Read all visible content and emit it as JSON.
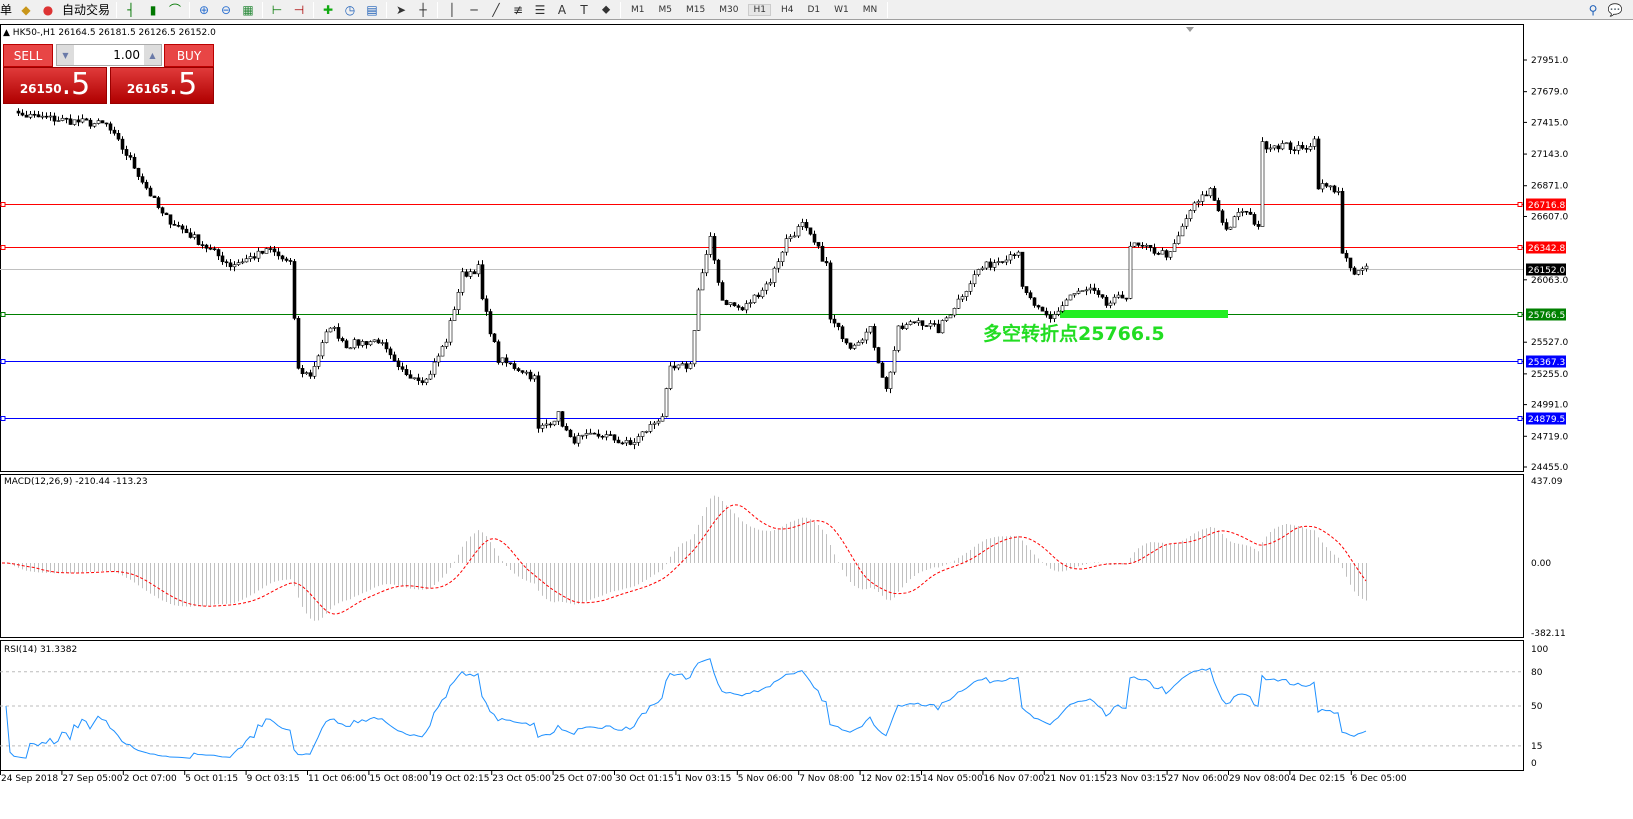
{
  "toolbar": {
    "order_label": "单",
    "autotrade_label": "自动交易",
    "icons": [
      "new-order-icon",
      "autotrade-icon",
      "bar-chart-icon",
      "candlestick-icon",
      "line-chart-icon",
      "zoom-in-icon",
      "zoom-out-icon",
      "tile-windows-icon",
      "chart-shift-icon",
      "autoscroll-icon",
      "indicators-icon",
      "periods-icon",
      "templates-icon",
      "cursor-icon",
      "crosshair-icon",
      "vertical-line-icon",
      "horizontal-line-icon",
      "trendline-icon",
      "fibo-icon",
      "channel-icon",
      "text-icon",
      "label-icon",
      "arrows-icon"
    ],
    "timeframes": [
      "M1",
      "M5",
      "M15",
      "M30",
      "H1",
      "H4",
      "D1",
      "W1",
      "MN"
    ],
    "active_timeframe": "H1"
  },
  "chart": {
    "header": "HK50-,H1  26164.5 26181.5 26126.5 26152.0",
    "trade_panel": {
      "sell_label": "SELL",
      "buy_label": "BUY",
      "lot": "1.00",
      "sell_price_main": "26150",
      "sell_price_frac": ".5",
      "buy_price_main": "26165",
      "buy_price_frac": ".5"
    },
    "price_axis": [
      "27951.0",
      "27679.0",
      "27415.0",
      "27143.0",
      "26871.0",
      "26607.0",
      "26063.0",
      "25527.0",
      "25255.0",
      "24991.0",
      "24719.0",
      "24455.0"
    ],
    "levels": [
      {
        "price": "26716.8",
        "color": "#ff0000"
      },
      {
        "price": "26342.8",
        "color": "#ff0000"
      },
      {
        "price": "25766.5",
        "color": "#008000"
      },
      {
        "price": "25367.3",
        "color": "#0000ff"
      },
      {
        "price": "24879.5",
        "color": "#0000ff"
      }
    ],
    "current_price": "26152.0",
    "pivot_label": "多空转折点25766.5",
    "pivot_color": "#22ee22",
    "time_axis": [
      "24 Sep 2018",
      "27 Sep 05:00",
      "2 Oct 07:00",
      "5 Oct 01:15",
      "9 Oct 03:15",
      "11 Oct 06:00",
      "15 Oct 08:00",
      "19 Oct 02:15",
      "23 Oct 05:00",
      "25 Oct 07:00",
      "30 Oct 01:15",
      "1 Nov 03:15",
      "5 Nov 06:00",
      "7 Nov 08:00",
      "12 Nov 02:15",
      "14 Nov 05:00",
      "16 Nov 07:00",
      "21 Nov 01:15",
      "23 Nov 03:15",
      "27 Nov 06:00",
      "29 Nov 08:00",
      "4 Dec 02:15",
      "6 Dec 05:00"
    ]
  },
  "macd": {
    "label": "MACD(12,26,9) -210.44 -113.23",
    "axis": [
      "437.09",
      "0.00",
      "-382.11"
    ],
    "signal_color": "#ff0000",
    "hist_color": "#c0c0c0"
  },
  "rsi": {
    "label": "RSI(14) 31.3382",
    "axis": [
      "100",
      "80",
      "50",
      "15",
      "0"
    ],
    "line_color": "#1e90ff"
  },
  "chart_data": {
    "type": "candlestick",
    "symbol": "HK50-",
    "timeframe": "H1",
    "approx_close_path": [
      [
        0,
        27693
      ],
      [
        4,
        27479
      ],
      [
        26,
        27393
      ],
      [
        32,
        27092
      ],
      [
        40,
        26620
      ],
      [
        47,
        26448
      ],
      [
        57,
        26190
      ],
      [
        67,
        26319
      ],
      [
        72,
        26190
      ],
      [
        74,
        25288
      ],
      [
        77,
        25245
      ],
      [
        82,
        25675
      ],
      [
        86,
        25503
      ],
      [
        94,
        25546
      ],
      [
        99,
        25288
      ],
      [
        106,
        25202
      ],
      [
        111,
        25546
      ],
      [
        115,
        26104
      ],
      [
        119,
        26164
      ],
      [
        120,
        25890
      ],
      [
        124,
        25374
      ],
      [
        130,
        25288
      ],
      [
        133,
        25220
      ],
      [
        134,
        24773
      ],
      [
        139,
        24902
      ],
      [
        142,
        24687
      ],
      [
        150,
        24730
      ],
      [
        157,
        24644
      ],
      [
        165,
        24902
      ],
      [
        167,
        25288
      ],
      [
        172,
        25331
      ],
      [
        174,
        25976
      ],
      [
        177,
        26405
      ],
      [
        180,
        25890
      ],
      [
        185,
        25804
      ],
      [
        192,
        26061
      ],
      [
        196,
        26405
      ],
      [
        200,
        26534
      ],
      [
        204,
        26319
      ],
      [
        206,
        26190
      ],
      [
        207,
        25718
      ],
      [
        212,
        25503
      ],
      [
        217,
        25632
      ],
      [
        221,
        25116
      ],
      [
        224,
        25632
      ],
      [
        229,
        25718
      ],
      [
        234,
        25632
      ],
      [
        239,
        25890
      ],
      [
        244,
        26148
      ],
      [
        249,
        26233
      ],
      [
        254,
        26319
      ],
      [
        255,
        25976
      ],
      [
        260,
        25761
      ],
      [
        262,
        25718
      ],
      [
        267,
        25933
      ],
      [
        272,
        25976
      ],
      [
        276,
        25847
      ],
      [
        281,
        25933
      ],
      [
        282,
        26362
      ],
      [
        287,
        26319
      ],
      [
        292,
        26276
      ],
      [
        297,
        26663
      ],
      [
        302,
        26835
      ],
      [
        306,
        26491
      ],
      [
        310,
        26663
      ],
      [
        314,
        26534
      ],
      [
        315,
        27221
      ],
      [
        320,
        27221
      ],
      [
        325,
        27178
      ],
      [
        328,
        27264
      ],
      [
        329,
        26877
      ],
      [
        334,
        26835
      ],
      [
        335,
        26276
      ],
      [
        338,
        26104
      ],
      [
        341,
        26164
      ]
    ]
  }
}
